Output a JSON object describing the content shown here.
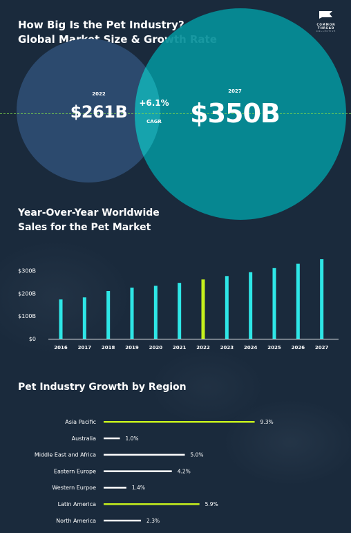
{
  "header": {
    "title_line1": "How Big Is the Pet Industry?",
    "title_line2": "Global Market Size & Growth Rate",
    "logo_name": "COMMON THREAD",
    "logo_sub": "COLLECTIVE"
  },
  "market": {
    "year_start": "2022",
    "value_start": "$261B",
    "year_end": "2027",
    "value_end": "$350B",
    "cagr_value": "+6.1%",
    "cagr_label": "CAGR",
    "colors": {
      "start": "#2c4a6e",
      "end": "#048f99",
      "overlap": "#16a3ad"
    }
  },
  "section2": {
    "title_line1": "Year-Over-Year Worldwide",
    "title_line2": "Sales for the Pet Market"
  },
  "section3": {
    "title": "Pet Industry Growth by Region"
  },
  "chart_data": [
    {
      "type": "bar",
      "title": "Year-Over-Year Worldwide Sales for the Pet Market",
      "categories": [
        "2016",
        "2017",
        "2018",
        "2019",
        "2020",
        "2021",
        "2022",
        "2023",
        "2024",
        "2025",
        "2026",
        "2027"
      ],
      "values": [
        173,
        182,
        210,
        225,
        233,
        246,
        261,
        276,
        293,
        311,
        330,
        350
      ],
      "highlight_index": 6,
      "y_ticks": [
        0,
        100,
        200,
        300
      ],
      "y_tick_labels": [
        "$0",
        "$100B",
        "$200B",
        "$300B"
      ],
      "ylim": [
        0,
        350
      ],
      "grid": false,
      "colors": {
        "bar": "#2ee6e6",
        "highlight": "#c6f01c"
      }
    },
    {
      "type": "bar",
      "orientation": "horizontal",
      "title": "Pet Industry Growth by Region",
      "categories": [
        "Asia Pacific",
        "Australia",
        "Middle East and Africa",
        "Eastern Europe",
        "Western Eurpoe",
        "Latin America",
        "North America"
      ],
      "values": [
        9.3,
        1.0,
        5.0,
        4.2,
        1.4,
        5.9,
        2.3
      ],
      "value_labels": [
        "9.3%",
        "1.0%",
        "5.0%",
        "4.2%",
        "1.4%",
        "5.9%",
        "2.3%"
      ],
      "highlight_indices": [
        0,
        5
      ],
      "colors": {
        "bar": "#ffffff",
        "highlight": "#c6f01c"
      }
    }
  ]
}
